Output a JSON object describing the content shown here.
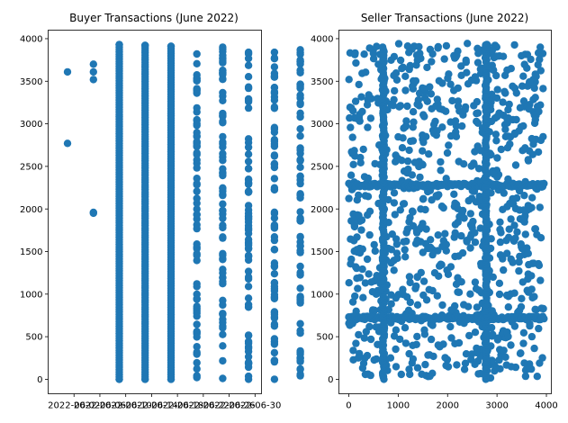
{
  "chart_data": [
    {
      "type": "scatter",
      "title": "Buyer Transactions (June 2022)",
      "xlabel": "",
      "ylabel": "",
      "x_axis": "date",
      "xlim": [
        "2022-05-29",
        "2022-07-01"
      ],
      "ylim": [
        -170,
        4100
      ],
      "xticks": [
        "2022-06-02",
        "2022-06-06",
        "2022-06-10",
        "2022-06-14",
        "2022-06-18",
        "2022-06-22",
        "2022-06-26",
        "2022-06-30"
      ],
      "xtick_labels": [
        "2022-06-02",
        "2022-06-06",
        "2022-06-10",
        "2022-06-14",
        "2022-06-18",
        "2022-06-22",
        "2022-06-26",
        "2022-06-30"
      ],
      "yticks": [
        0,
        500,
        1000,
        1500,
        2000,
        2500,
        3000,
        3500,
        4000
      ],
      "ytick_labels": [
        "0",
        "500",
        "1000",
        "1500",
        "2000",
        "2500",
        "3000",
        "3500",
        "4000"
      ],
      "grid": false,
      "color": "#1f77b4",
      "series": [
        {
          "x": [
            "2022-06-01",
            "2022-06-01",
            "2022-06-05",
            "2022-06-05",
            "2022-06-05",
            "2022-06-05",
            "2022-06-05"
          ],
          "y": [
            3610,
            2770,
            3700,
            3610,
            3520,
            1960,
            1950
          ]
        }
      ],
      "point_columns": [
        {
          "x": "2022-06-09",
          "y_min": 0,
          "y_max": 3930,
          "dense": true
        },
        {
          "x": "2022-06-13",
          "y_min": 0,
          "y_max": 3920,
          "dense": true
        },
        {
          "x": "2022-06-17",
          "y_min": 0,
          "y_max": 3910,
          "dense": true
        },
        {
          "x": "2022-06-21",
          "y_min": 20,
          "y_max": 3820,
          "dense": false
        },
        {
          "x": "2022-06-25",
          "y_min": 10,
          "y_max": 3900,
          "dense": false
        },
        {
          "x": "2022-06-29",
          "y_min": 0,
          "y_max": 3840,
          "dense": false
        },
        {
          "x": "2022-07-03",
          "y_min": 0,
          "y_max": 3840,
          "dense": false
        },
        {
          "x": "2022-07-07",
          "y_min": 40,
          "y_max": 3870,
          "dense": false
        }
      ]
    },
    {
      "type": "scatter",
      "title": "Seller Transactions (June 2022)",
      "xlabel": "",
      "ylabel": "",
      "xlim": [
        -200,
        4100
      ],
      "ylim": [
        -170,
        4100
      ],
      "xticks": [
        0,
        1000,
        2000,
        3000,
        4000
      ],
      "xtick_labels": [
        "0",
        "1000",
        "2000",
        "3000",
        "4000"
      ],
      "yticks": [
        0,
        500,
        1000,
        1500,
        2000,
        2500,
        3000,
        3500,
        4000
      ],
      "ytick_labels": [
        "0",
        "500",
        "1000",
        "1500",
        "2000",
        "2500",
        "3000",
        "3500",
        "4000"
      ],
      "grid": false,
      "color": "#1f77b4",
      "distribution": {
        "x_range": [
          0,
          3950
        ],
        "y_range": [
          0,
          3950
        ],
        "random_points": 900
      },
      "dense_bands": [
        {
          "orientation": "horizontal",
          "y": 720,
          "x_from": 0,
          "x_to": 3950
        },
        {
          "orientation": "horizontal",
          "y": 2280,
          "x_from": 0,
          "x_to": 3950
        },
        {
          "orientation": "vertical",
          "x": 700,
          "y_from": 0,
          "y_to": 3900
        },
        {
          "orientation": "vertical",
          "x": 2780,
          "y_from": 0,
          "y_to": 3930
        }
      ]
    }
  ]
}
